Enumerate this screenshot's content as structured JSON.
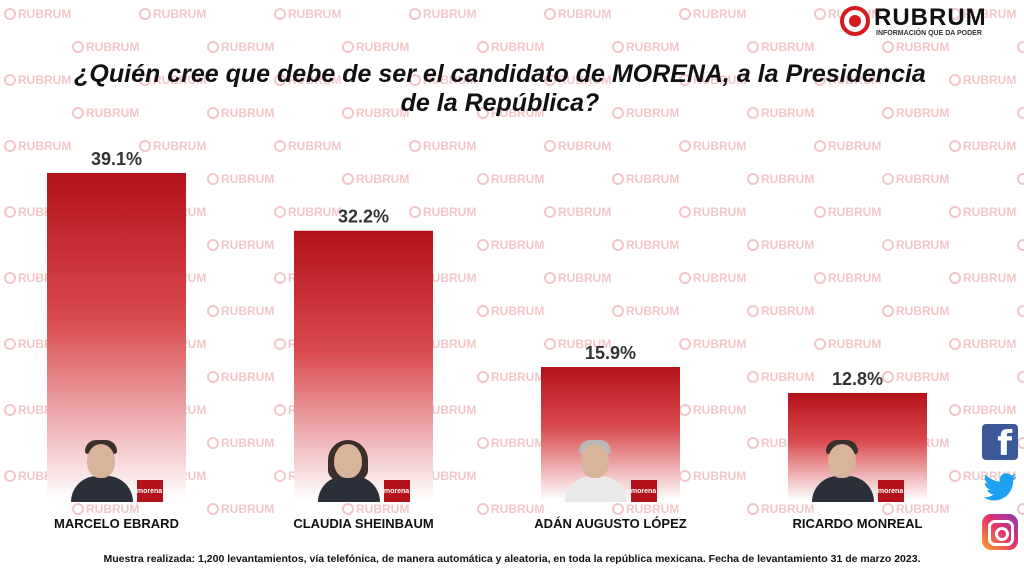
{
  "brand": {
    "name": "RUBRUM",
    "tagline": "INFORMACIÓN QUE DA PODER",
    "watermark": "RUBRUM",
    "colors": {
      "accent": "#d71920",
      "bar_top": "#b3121a",
      "bar_bottom": "#ffffff"
    }
  },
  "chart_data": {
    "type": "bar",
    "title": "¿Quién cree que debe de ser el candidato de MORENA, a la Presidencia de la República?",
    "categories": [
      "MARCELO EBRARD",
      "CLAUDIA SHEINBAUM",
      "ADÁN AUGUSTO LÓPEZ",
      "RICARDO MONREAL"
    ],
    "values": [
      39.1,
      32.2,
      15.9,
      12.8
    ],
    "value_labels": [
      "39.1%",
      "32.2%",
      "15.9%",
      "12.8%"
    ],
    "ylim": [
      0,
      39.1
    ],
    "grid": false,
    "legend": "none",
    "xlabel": "",
    "ylabel": ""
  },
  "candidates": [
    {
      "name": "MARCELO EBRARD",
      "badge": "morena",
      "icon": "candidate-photo"
    },
    {
      "name": "CLAUDIA SHEINBAUM",
      "badge": "morena",
      "icon": "candidate-photo"
    },
    {
      "name": "ADÁN AUGUSTO LÓPEZ",
      "badge": "morena",
      "icon": "candidate-photo"
    },
    {
      "name": "RICARDO MONREAL",
      "badge": "morena",
      "icon": "candidate-photo"
    }
  ],
  "social": {
    "icons": [
      "facebook-icon",
      "twitter-icon",
      "instagram-icon"
    ],
    "facebook_glyph": "f"
  },
  "footnote": "Muestra realizada: 1,200 levantamientos, vía telefónica, de manera automática y aleatoria, en toda la república mexicana. Fecha de levantamiento 31 de marzo 2023."
}
